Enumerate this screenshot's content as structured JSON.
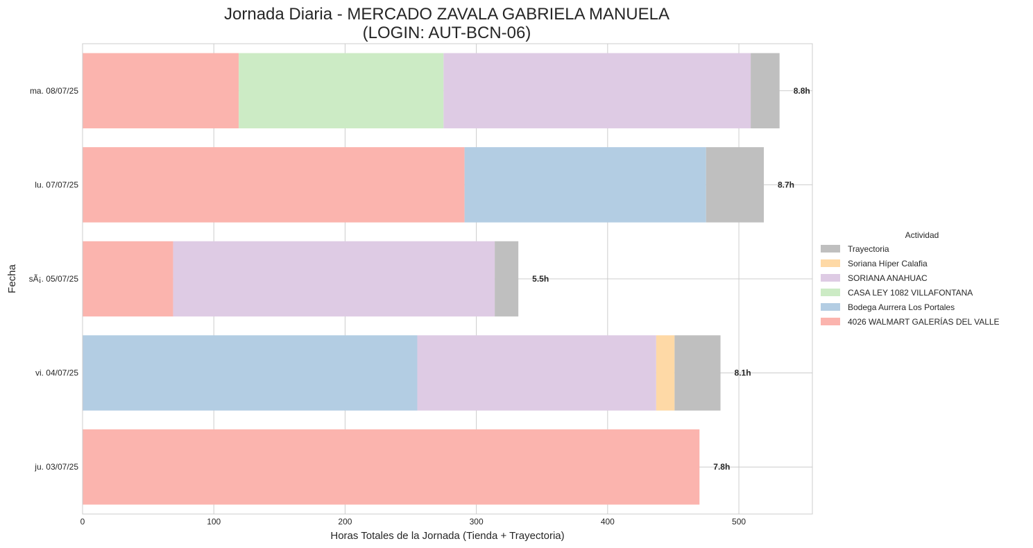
{
  "chart_data": {
    "type": "bar",
    "orientation": "horizontal",
    "stacked": true,
    "title_line1": "Jornada Diaria - MERCADO ZAVALA GABRIELA MANUELA",
    "title_line2": "(LOGIN: AUT-BCN-06)",
    "xlabel": "Horas Totales de la Jornada (Tienda + Trayectoria)",
    "ylabel": "Fecha",
    "xlim": [
      0,
      556
    ],
    "xticks": [
      0,
      100,
      200,
      300,
      400,
      500
    ],
    "grid": true,
    "legend_title": "Actividad",
    "legend_position": "center-right outside",
    "categories": [
      "ma. 08/07/25",
      "lu. 07/07/25",
      "sÃ¡. 05/07/25",
      "vi. 04/07/25",
      "ju. 03/07/25"
    ],
    "series": [
      {
        "name": "4026 WALMART GALERÍAS DEL VALLE",
        "color": "#fbb4ae",
        "values": [
          119,
          291,
          69,
          0,
          470
        ]
      },
      {
        "name": "Bodega Aurrera Los Portales",
        "color": "#b3cde3",
        "values": [
          0,
          184,
          0,
          255,
          0
        ]
      },
      {
        "name": "CASA LEY 1082 VILLAFONTANA",
        "color": "#ccebc5",
        "values": [
          156,
          0,
          0,
          0,
          0
        ]
      },
      {
        "name": "SORIANA ANAHUAC",
        "color": "#decbe4",
        "values": [
          234,
          0,
          245,
          182,
          0
        ]
      },
      {
        "name": "Soriana Híper Calafia",
        "color": "#fed9a6",
        "values": [
          0,
          0,
          0,
          14,
          0
        ]
      },
      {
        "name": "Trayectoria",
        "color": "#bfbfbf",
        "values": [
          22,
          44,
          18,
          35,
          0
        ]
      }
    ],
    "totals": [
      "8.8h",
      "8.7h",
      "5.5h",
      "8.1h",
      "7.8h"
    ]
  }
}
